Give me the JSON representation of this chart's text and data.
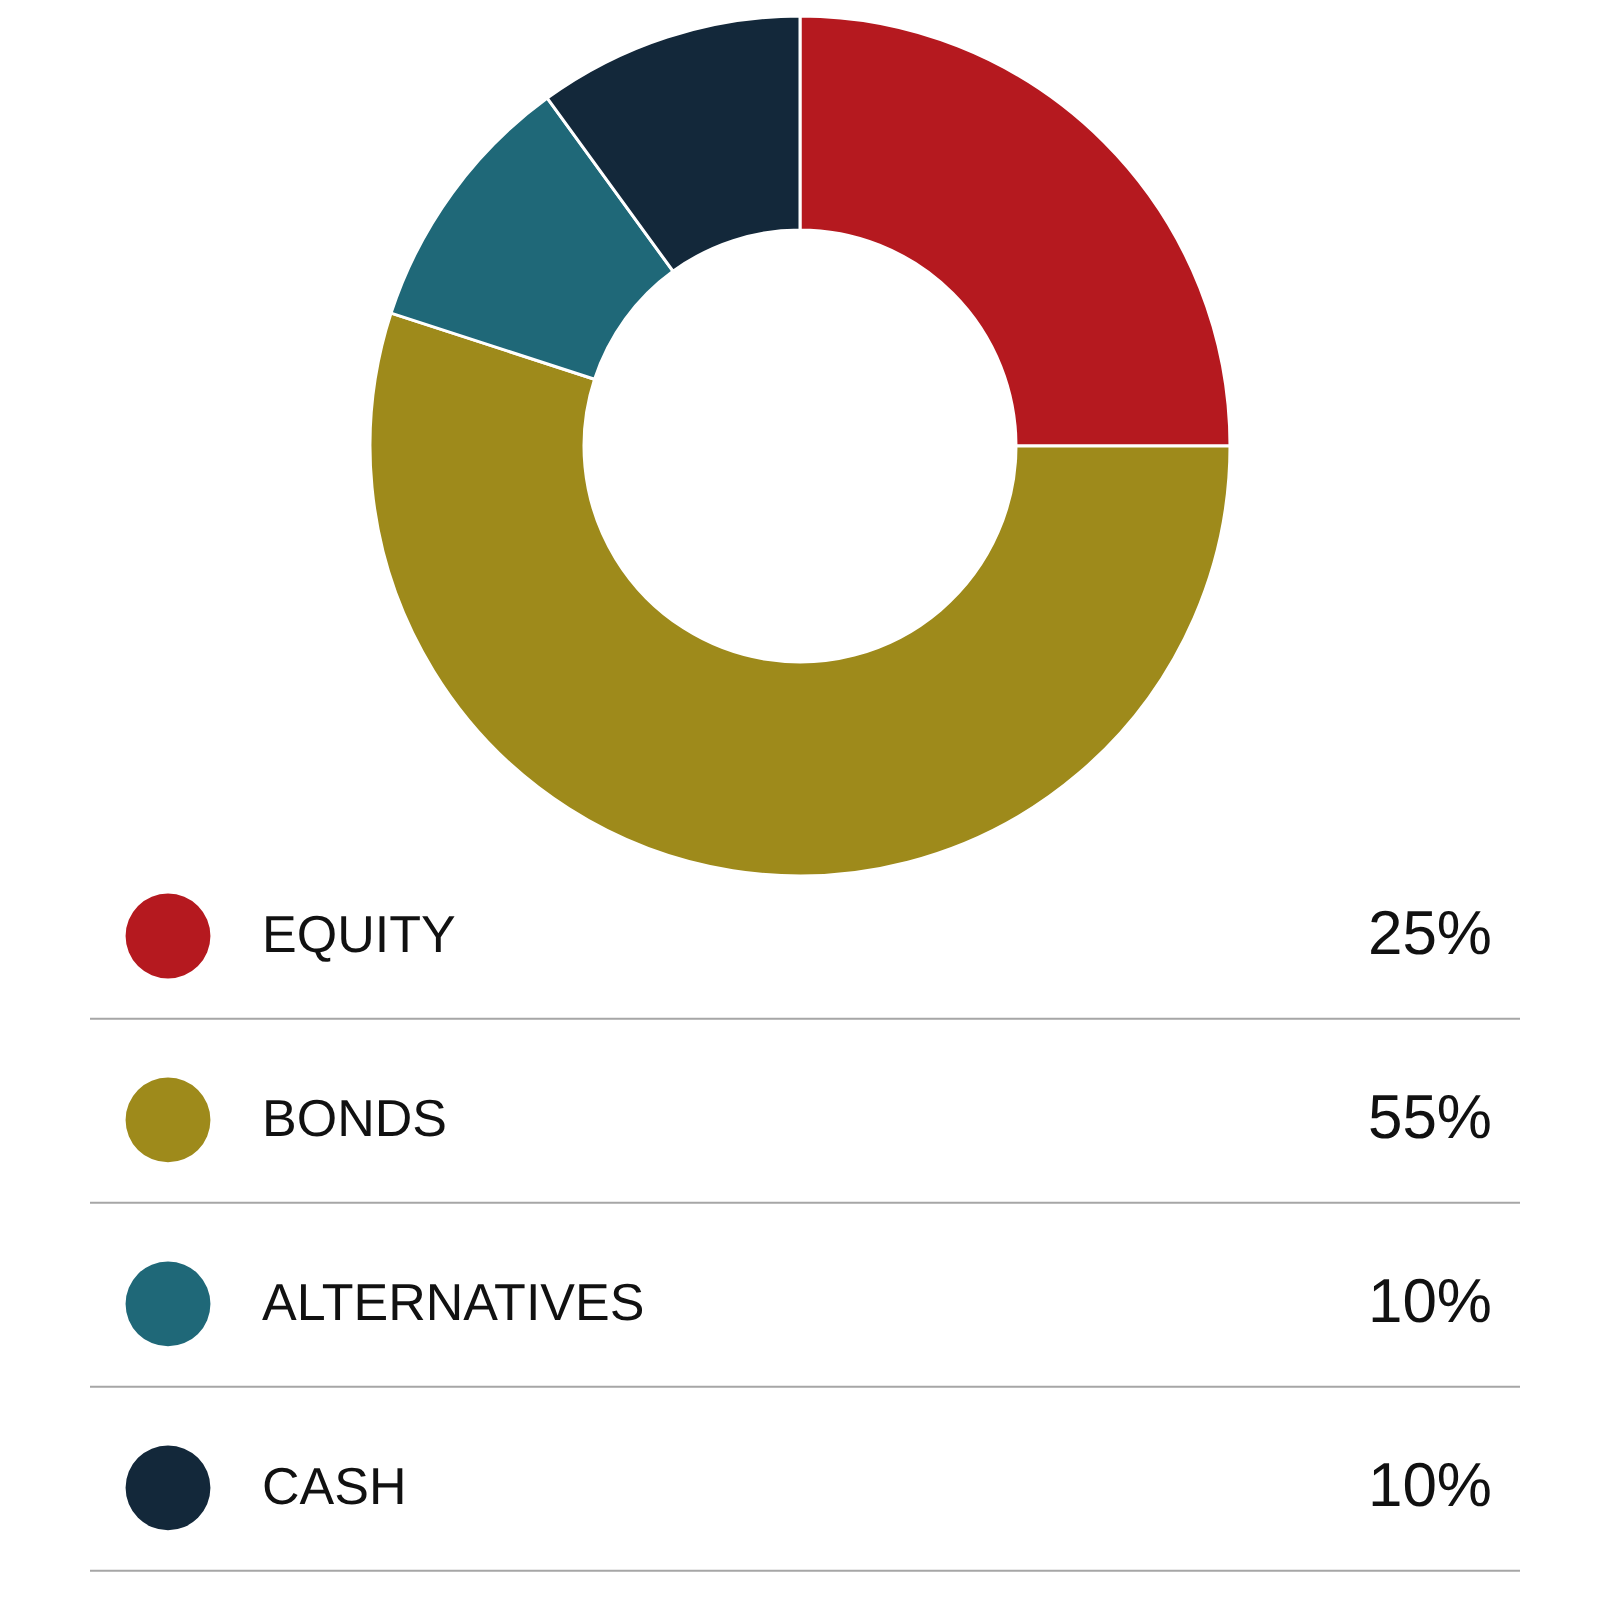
{
  "chart_data": {
    "type": "donut",
    "categories": [
      "EQUITY",
      "BONDS",
      "ALTERNATIVES",
      "CASH"
    ],
    "values": [
      25,
      55,
      10,
      10
    ],
    "colors": [
      "#b5191f",
      "#9e8a1b",
      "#1f6878",
      "#13283a"
    ],
    "value_labels": [
      "25%",
      "55%",
      "10%",
      "10%"
    ],
    "legend": "bottom"
  }
}
